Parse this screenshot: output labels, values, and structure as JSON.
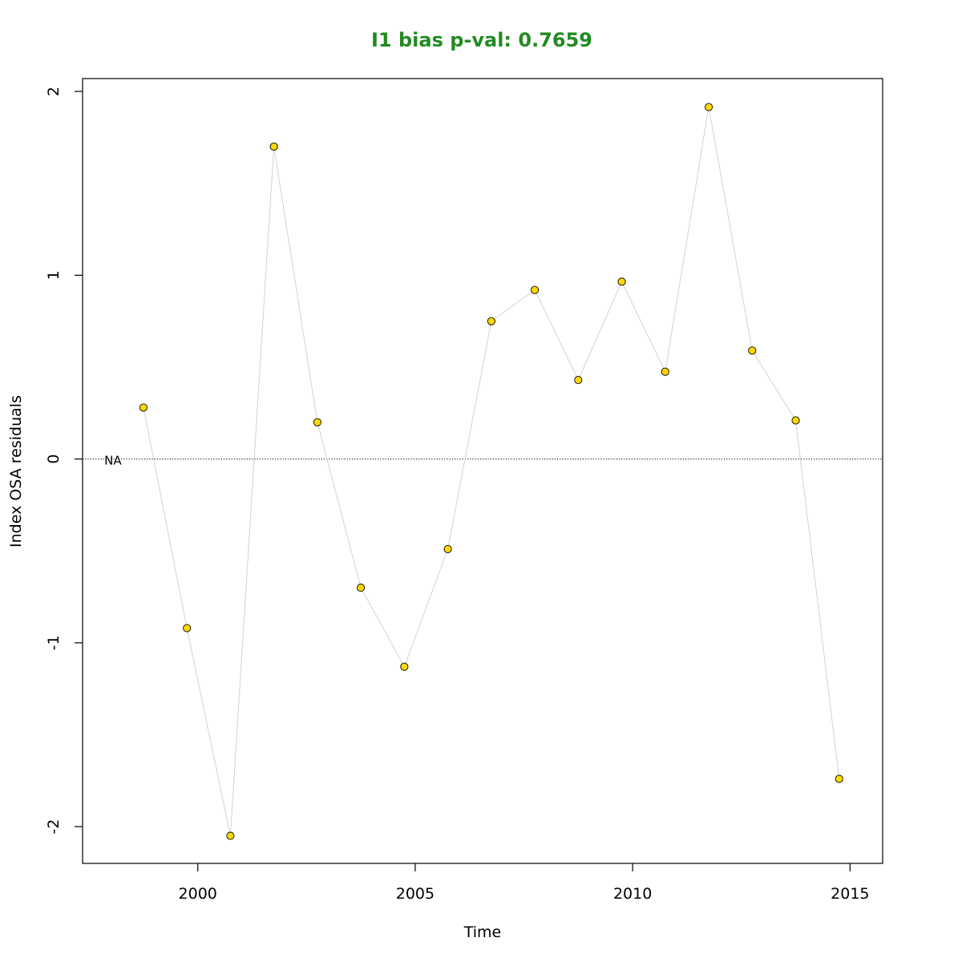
{
  "colors": {
    "title": "#228B22",
    "point_fill": "#FFD700",
    "point_stroke": "#000000",
    "line": "#d3d3d3",
    "zero_line": "#000000",
    "frame": "#000000"
  },
  "chart_data": {
    "type": "scatter",
    "title": "I1 bias p-val: 0.7659",
    "xlabel": "Time",
    "ylabel": "Index OSA residuals",
    "xlim": [
      1997.35,
      2015.75
    ],
    "ylim": [
      -2.2,
      2.07
    ],
    "x_ticks": [
      2000,
      2005,
      2010,
      2015
    ],
    "y_ticks": [
      -2,
      -1,
      0,
      1,
      2
    ],
    "grid": false,
    "legend": "none",
    "reference_line": {
      "y": 0,
      "style": "dotted"
    },
    "annotation": {
      "text": "NA",
      "x": 1997.85,
      "y": 0
    },
    "series": [
      {
        "x": [
          1998.75,
          1999.75,
          2000.75,
          2001.75,
          2002.75,
          2003.75,
          2004.75,
          2005.75,
          2006.75,
          2007.75,
          2008.75,
          2009.75,
          2010.75,
          2011.75,
          2012.75,
          2013.75,
          2014.75
        ],
        "y": [
          0.28,
          -0.92,
          -2.05,
          1.7,
          0.2,
          -0.7,
          -1.13,
          -0.49,
          0.75,
          0.92,
          0.43,
          0.965,
          0.475,
          1.915,
          0.59,
          0.21,
          -1.74
        ]
      }
    ]
  }
}
